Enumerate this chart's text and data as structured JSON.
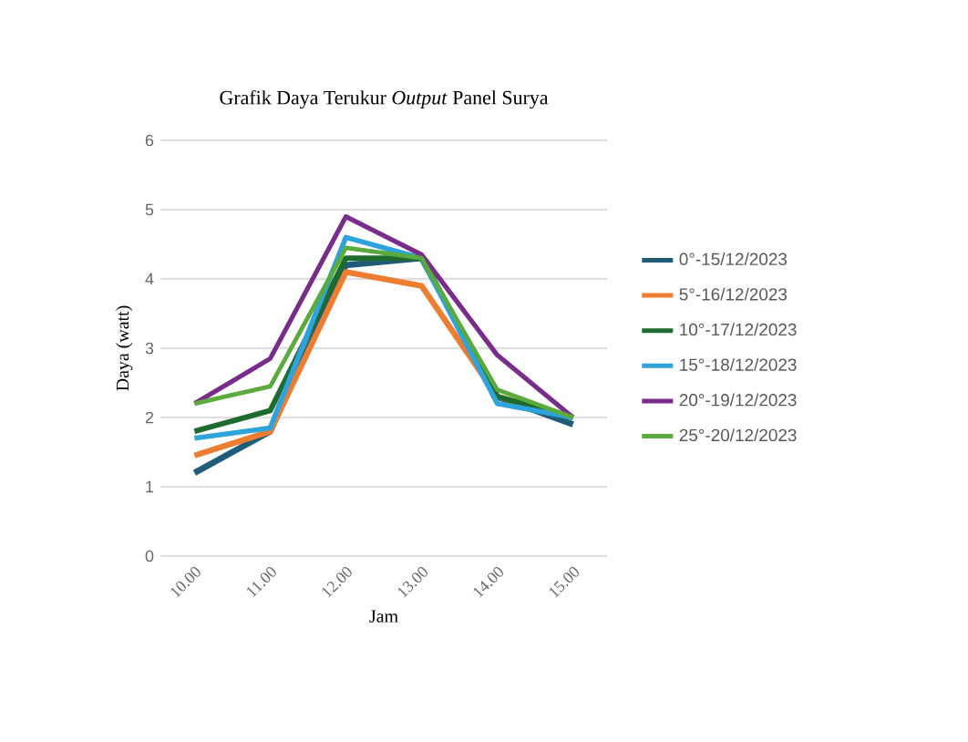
{
  "chart_data": {
    "type": "line",
    "title": "Grafik Daya Terukur *Output* Panel Surya",
    "xlabel": "Jam",
    "ylabel": "Daya (watt)",
    "categories": [
      "10.00",
      "11.00",
      "12.00",
      "13.00",
      "14.00",
      "15.00"
    ],
    "series": [
      {
        "name": "0°-15/12/2023",
        "color": "#1f5c7a",
        "values": [
          1.2,
          1.8,
          4.2,
          4.3,
          2.3,
          1.9
        ]
      },
      {
        "name": "5°-16/12/2023",
        "color": "#ed7d31",
        "values": [
          1.45,
          1.8,
          4.1,
          3.9,
          2.3,
          2.0
        ]
      },
      {
        "name": "10°-17/12/2023",
        "color": "#1e6b2e",
        "values": [
          1.8,
          2.1,
          4.3,
          4.3,
          2.3,
          2.0
        ]
      },
      {
        "name": "15°-18/12/2023",
        "color": "#2ea3dc",
        "values": [
          1.7,
          1.85,
          4.6,
          4.3,
          2.2,
          2.0
        ]
      },
      {
        "name": "20°-19/12/2023",
        "color": "#7a2c8a",
        "values": [
          2.2,
          2.85,
          4.9,
          4.35,
          2.9,
          2.0
        ]
      },
      {
        "name": "25°-20/12/2023",
        "color": "#5aab3c",
        "values": [
          2.2,
          2.45,
          4.45,
          4.3,
          2.4,
          2.0
        ]
      }
    ],
    "ylim": [
      0,
      6
    ],
    "yticks": [
      0,
      1,
      2,
      3,
      4,
      5,
      6
    ],
    "grid": "y",
    "legend": "right",
    "marker": "none",
    "line_style": "solid"
  }
}
